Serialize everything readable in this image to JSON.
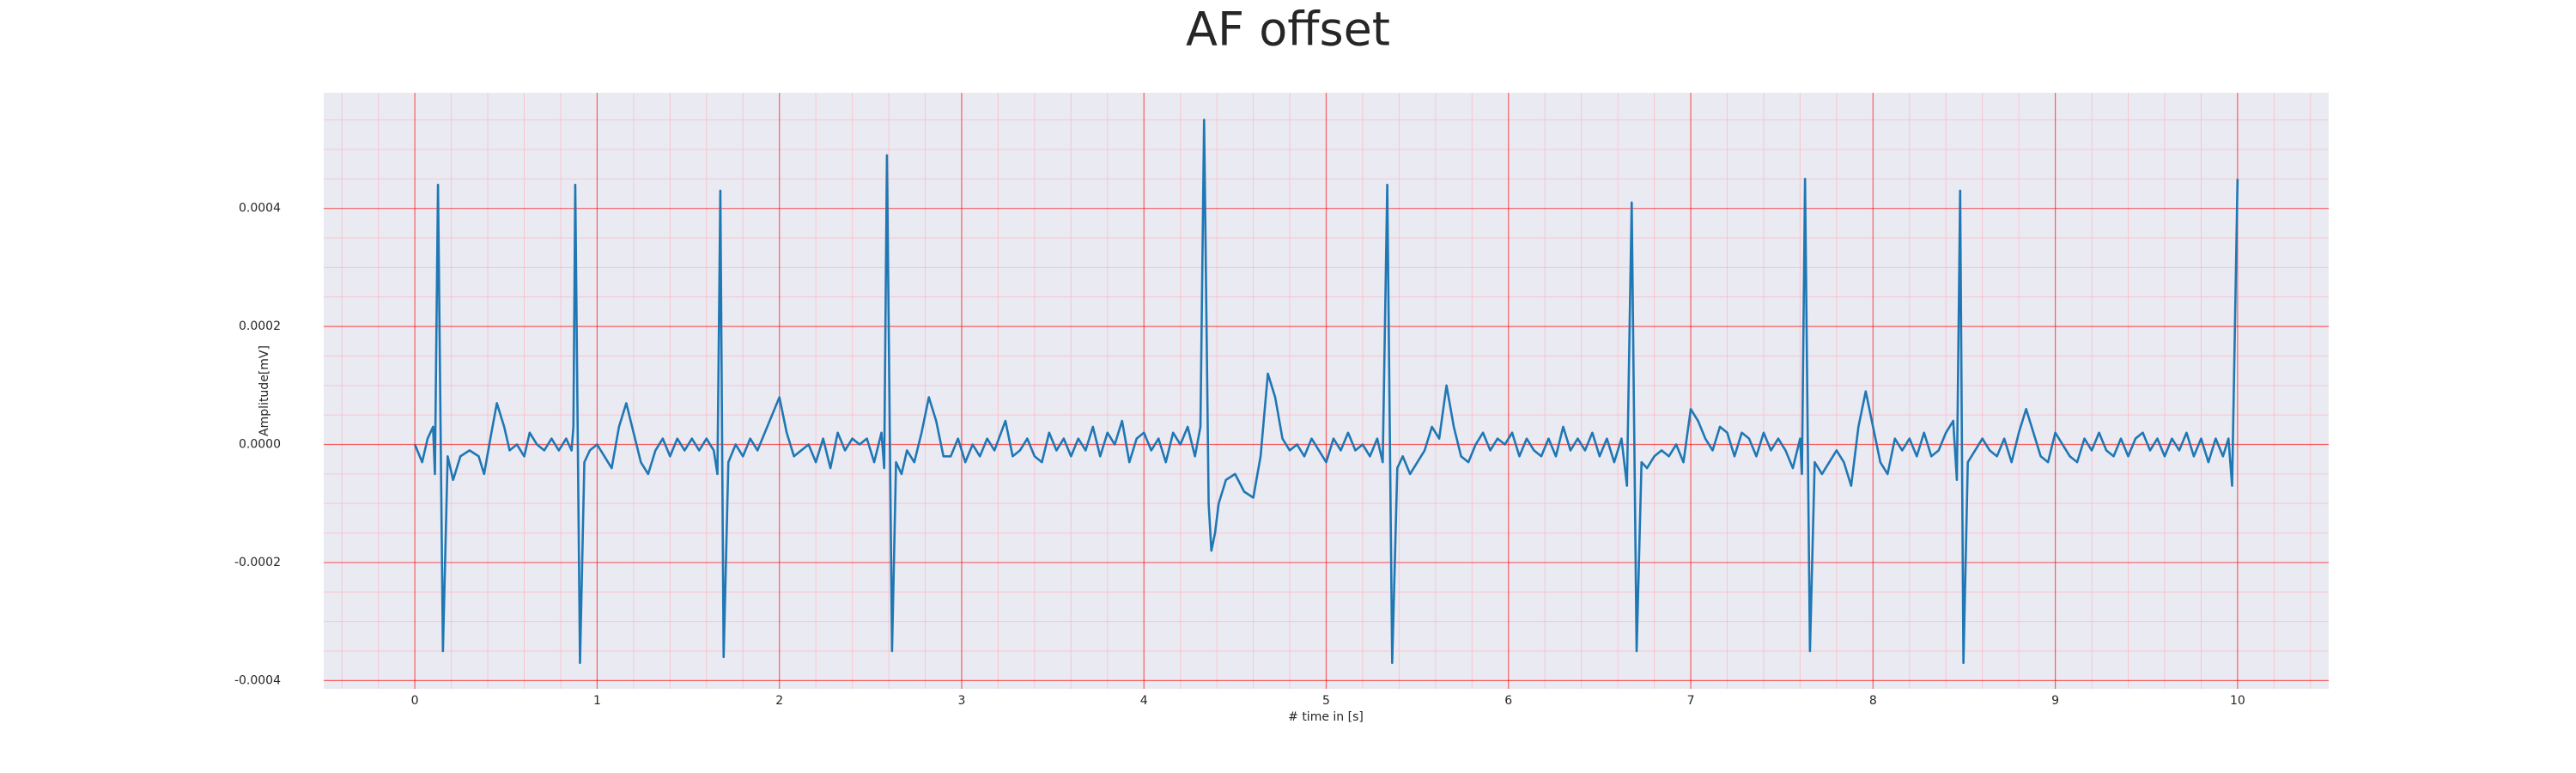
{
  "chart_data": {
    "type": "line",
    "title": "AF offset",
    "xlabel": "# time in [s]",
    "ylabel": "Amplitude[mV]",
    "xlim": [
      -0.5,
      10.5
    ],
    "ylim": [
      -0.000414,
      0.000596
    ],
    "xticks": [
      0,
      1,
      2,
      3,
      4,
      5,
      6,
      7,
      8,
      9,
      10
    ],
    "yticks": [
      {
        "value": -0.0004,
        "label": "-0.0004"
      },
      {
        "value": -0.0002,
        "label": "-0.0002"
      },
      {
        "value": 0,
        "label": "0.0000"
      },
      {
        "value": 0.0002,
        "label": "0.0002"
      },
      {
        "value": 0.0004,
        "label": "0.0004"
      }
    ],
    "xminorticks": [
      -0.4,
      -0.2,
      0.2,
      0.4,
      0.6,
      0.8,
      1.2,
      1.4,
      1.6,
      1.8,
      2.2,
      2.4,
      2.6,
      2.8,
      3.2,
      3.4,
      3.6,
      3.8,
      4.2,
      4.4,
      4.6,
      4.8,
      5.2,
      5.4,
      5.6,
      5.8,
      6.2,
      6.4,
      6.6,
      6.8,
      7.2,
      7.4,
      7.6,
      7.8,
      8.2,
      8.4,
      8.6,
      8.8,
      9.2,
      9.4,
      9.6,
      9.8,
      10.2,
      10.4
    ],
    "yminorticks": [
      -0.00035,
      -0.0003,
      -0.00025,
      -0.00015,
      -0.0001,
      -5e-05,
      5e-05,
      0.0001,
      0.00015,
      0.00025,
      0.0003,
      0.00035,
      0.00045,
      0.0005,
      0.00055
    ],
    "grid": true,
    "minor_grid": true,
    "grid_color": "#ff0000",
    "minor_grid_color": "#ffb6c1",
    "background": "#eaeaf2",
    "series": [
      {
        "color": "#1f77b4",
        "x": [
          0,
          0.04,
          0.07,
          0.1,
          0.11,
          0.127,
          0.154,
          0.18,
          0.21,
          0.25,
          0.3,
          0.35,
          0.38,
          0.42,
          0.45,
          0.49,
          0.52,
          0.56,
          0.6,
          0.63,
          0.67,
          0.71,
          0.75,
          0.79,
          0.83,
          0.86,
          0.87,
          0.88,
          0.906,
          0.93,
          0.96,
          1.0,
          1.04,
          1.08,
          1.12,
          1.16,
          1.2,
          1.24,
          1.28,
          1.32,
          1.36,
          1.4,
          1.44,
          1.48,
          1.52,
          1.56,
          1.6,
          1.64,
          1.66,
          1.676,
          1.694,
          1.72,
          1.76,
          1.8,
          1.84,
          1.88,
          1.92,
          2.0,
          2.04,
          2.08,
          2.12,
          2.16,
          2.2,
          2.24,
          2.28,
          2.32,
          2.36,
          2.4,
          2.44,
          2.48,
          2.52,
          2.56,
          2.575,
          2.59,
          2.618,
          2.64,
          2.67,
          2.7,
          2.74,
          2.78,
          2.82,
          2.86,
          2.9,
          2.94,
          2.98,
          3.02,
          3.06,
          3.1,
          3.14,
          3.18,
          3.24,
          3.28,
          3.32,
          3.36,
          3.4,
          3.44,
          3.48,
          3.52,
          3.56,
          3.6,
          3.64,
          3.68,
          3.72,
          3.76,
          3.8,
          3.84,
          3.88,
          3.92,
          3.96,
          4.0,
          4.04,
          4.08,
          4.12,
          4.16,
          4.2,
          4.24,
          4.28,
          4.31,
          4.33,
          4.355,
          4.37,
          4.39,
          4.41,
          4.45,
          4.5,
          4.55,
          4.6,
          4.64,
          4.68,
          4.72,
          4.76,
          4.8,
          4.84,
          4.88,
          4.92,
          4.96,
          5.0,
          5.04,
          5.08,
          5.12,
          5.16,
          5.2,
          5.24,
          5.28,
          5.31,
          5.335,
          5.362,
          5.39,
          5.42,
          5.46,
          5.5,
          5.54,
          5.58,
          5.62,
          5.66,
          5.7,
          5.74,
          5.78,
          5.82,
          5.86,
          5.9,
          5.94,
          5.98,
          6.02,
          6.06,
          6.1,
          6.14,
          6.18,
          6.22,
          6.26,
          6.3,
          6.34,
          6.38,
          6.42,
          6.46,
          6.5,
          6.54,
          6.58,
          6.62,
          6.65,
          6.676,
          6.703,
          6.73,
          6.76,
          6.8,
          6.84,
          6.88,
          6.92,
          6.96,
          7.0,
          7.04,
          7.08,
          7.12,
          7.16,
          7.2,
          7.24,
          7.28,
          7.32,
          7.36,
          7.4,
          7.44,
          7.48,
          7.52,
          7.56,
          7.6,
          7.61,
          7.627,
          7.654,
          7.68,
          7.72,
          7.76,
          7.8,
          7.84,
          7.88,
          7.92,
          7.96,
          8.0,
          8.04,
          8.08,
          8.12,
          8.16,
          8.2,
          8.24,
          8.28,
          8.32,
          8.36,
          8.4,
          8.44,
          8.46,
          8.478,
          8.496,
          8.52,
          8.56,
          8.6,
          8.64,
          8.68,
          8.72,
          8.76,
          8.8,
          8.84,
          8.88,
          8.92,
          8.96,
          9.0,
          9.04,
          9.08,
          9.12,
          9.16,
          9.2,
          9.24,
          9.28,
          9.32,
          9.36,
          9.4,
          9.44,
          9.48,
          9.52,
          9.56,
          9.6,
          9.64,
          9.68,
          9.72,
          9.76,
          9.8,
          9.84,
          9.88,
          9.92,
          9.95,
          9.97,
          10.0
        ],
        "values": [
          0,
          -3e-05,
          1e-05,
          3e-05,
          -5e-05,
          0.00044,
          -0.00035,
          -2e-05,
          -6e-05,
          -2e-05,
          -1e-05,
          -2e-05,
          -5e-05,
          2e-05,
          7e-05,
          3e-05,
          -1e-05,
          0,
          -2e-05,
          2e-05,
          0,
          -1e-05,
          1e-05,
          -1e-05,
          1e-05,
          -1e-05,
          3e-05,
          0.00044,
          -0.00037,
          -3e-05,
          -1e-05,
          0,
          -2e-05,
          -4e-05,
          3e-05,
          7e-05,
          2e-05,
          -3e-05,
          -5e-05,
          -1e-05,
          1e-05,
          -2e-05,
          1e-05,
          -1e-05,
          1e-05,
          -1e-05,
          1e-05,
          -1e-05,
          -5e-05,
          0.00043,
          -0.00036,
          -3e-05,
          0,
          -2e-05,
          1e-05,
          -1e-05,
          2e-05,
          8e-05,
          2e-05,
          -2e-05,
          -1e-05,
          0,
          -3e-05,
          1e-05,
          -4e-05,
          2e-05,
          -1e-05,
          1e-05,
          0,
          1e-05,
          -3e-05,
          2e-05,
          -4e-05,
          0.00049,
          -0.00035,
          -3e-05,
          -5e-05,
          -1e-05,
          -3e-05,
          2e-05,
          8e-05,
          4e-05,
          -2e-05,
          -2e-05,
          1e-05,
          -3e-05,
          0,
          -2e-05,
          1e-05,
          -1e-05,
          4e-05,
          -2e-05,
          -1e-05,
          1e-05,
          -2e-05,
          -3e-05,
          2e-05,
          -1e-05,
          1e-05,
          -2e-05,
          1e-05,
          -1e-05,
          3e-05,
          -2e-05,
          2e-05,
          0,
          4e-05,
          -3e-05,
          1e-05,
          2e-05,
          -1e-05,
          1e-05,
          -3e-05,
          2e-05,
          0,
          3e-05,
          -2e-05,
          3e-05,
          0.00055,
          -0.0001,
          -0.00018,
          -0.00015,
          -0.0001,
          -6e-05,
          -5e-05,
          -8e-05,
          -9e-05,
          -2e-05,
          0.00012,
          8e-05,
          1e-05,
          -1e-05,
          0,
          -2e-05,
          1e-05,
          -1e-05,
          -3e-05,
          1e-05,
          -1e-05,
          2e-05,
          -1e-05,
          0,
          -2e-05,
          1e-05,
          -3e-05,
          0.00044,
          -0.00037,
          -4e-05,
          -2e-05,
          -5e-05,
          -3e-05,
          -1e-05,
          3e-05,
          1e-05,
          0.0001,
          3e-05,
          -2e-05,
          -3e-05,
          0,
          2e-05,
          -1e-05,
          1e-05,
          0,
          2e-05,
          -2e-05,
          1e-05,
          -1e-05,
          -2e-05,
          1e-05,
          -2e-05,
          3e-05,
          -1e-05,
          1e-05,
          -1e-05,
          2e-05,
          -2e-05,
          1e-05,
          -3e-05,
          1e-05,
          -7e-05,
          0.00041,
          -0.00035,
          -3e-05,
          -4e-05,
          -2e-05,
          -1e-05,
          -2e-05,
          0,
          -3e-05,
          6e-05,
          4e-05,
          1e-05,
          -1e-05,
          3e-05,
          2e-05,
          -2e-05,
          2e-05,
          1e-05,
          -2e-05,
          2e-05,
          -1e-05,
          1e-05,
          -1e-05,
          -4e-05,
          1e-05,
          -5e-05,
          0.00045,
          -0.00035,
          -3e-05,
          -5e-05,
          -3e-05,
          -1e-05,
          -3e-05,
          -7e-05,
          3e-05,
          9e-05,
          3e-05,
          -3e-05,
          -5e-05,
          1e-05,
          -1e-05,
          1e-05,
          -2e-05,
          2e-05,
          -2e-05,
          -1e-05,
          2e-05,
          4e-05,
          -6e-05,
          0.00043,
          -0.00037,
          -3e-05,
          -1e-05,
          1e-05,
          -1e-05,
          -2e-05,
          1e-05,
          -3e-05,
          2e-05,
          6e-05,
          2e-05,
          -2e-05,
          -3e-05,
          2e-05,
          0,
          -2e-05,
          -3e-05,
          1e-05,
          -1e-05,
          2e-05,
          -1e-05,
          -2e-05,
          1e-05,
          -2e-05,
          1e-05,
          2e-05,
          -1e-05,
          1e-05,
          -2e-05,
          1e-05,
          -1e-05,
          2e-05,
          -2e-05,
          1e-05,
          -3e-05,
          1e-05,
          -2e-05,
          1e-05,
          -7e-05,
          0.00045
        ]
      }
    ]
  }
}
